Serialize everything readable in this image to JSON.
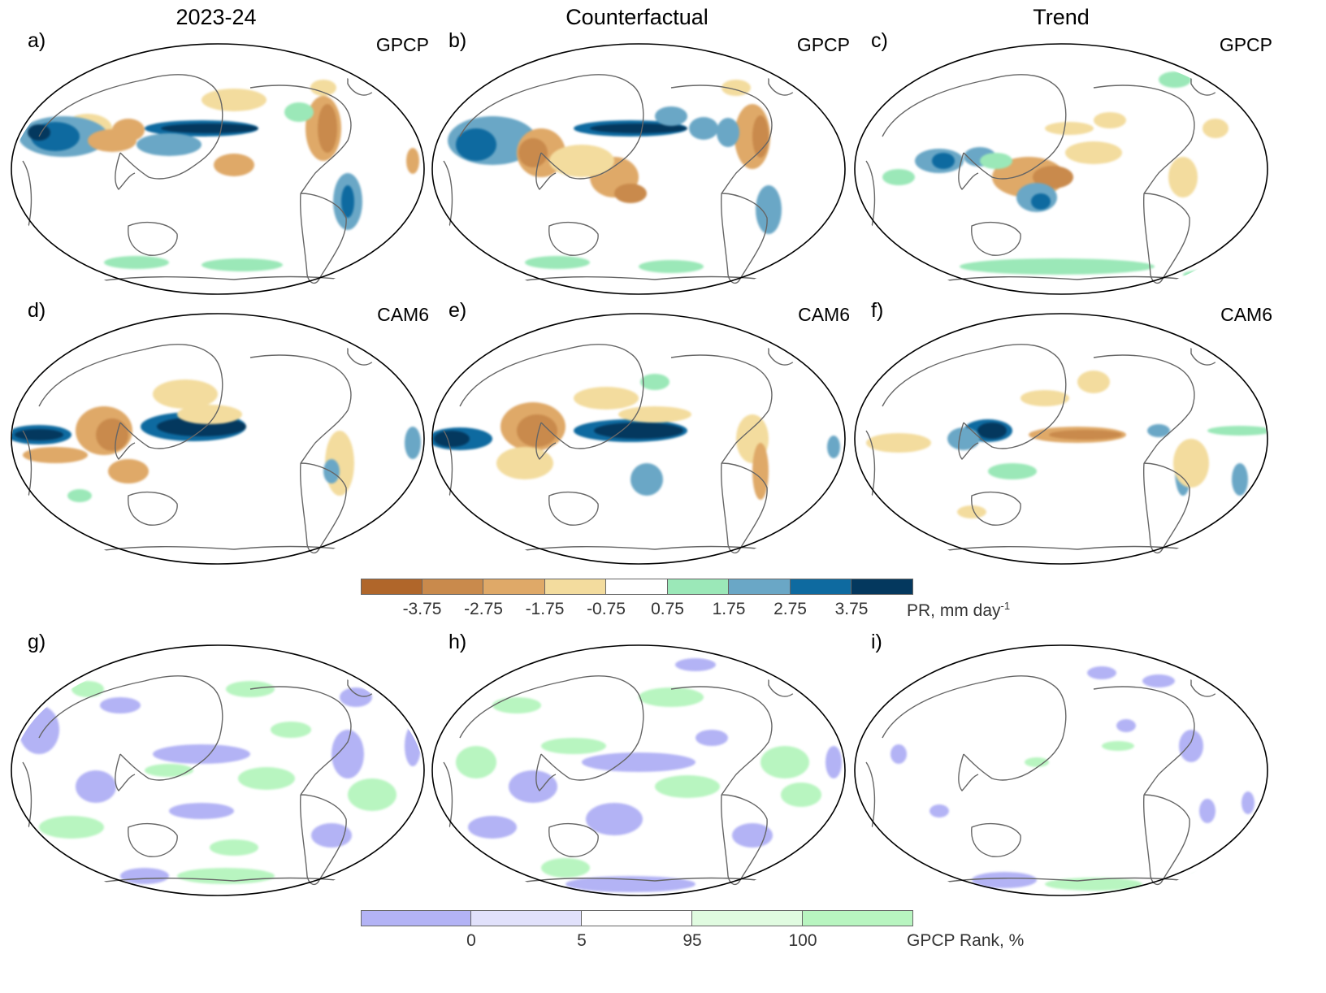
{
  "columns": [
    "2023-24",
    "Counterfactual",
    "Trend"
  ],
  "panels": [
    {
      "label": "a)",
      "dataset": "GPCP",
      "kind": "pr"
    },
    {
      "label": "b)",
      "dataset": "GPCP",
      "kind": "pr"
    },
    {
      "label": "c)",
      "dataset": "GPCP",
      "kind": "pr"
    },
    {
      "label": "d)",
      "dataset": "CAM6",
      "kind": "pr"
    },
    {
      "label": "e)",
      "dataset": "CAM6",
      "kind": "pr"
    },
    {
      "label": "f)",
      "dataset": "CAM6",
      "kind": "pr"
    },
    {
      "label": "g)",
      "dataset": "",
      "kind": "rank"
    },
    {
      "label": "h)",
      "dataset": "",
      "kind": "rank"
    },
    {
      "label": "i)",
      "dataset": "",
      "kind": "rank"
    }
  ],
  "pr_colorbar": {
    "colors": [
      "#b0662a",
      "#c98a4c",
      "#dfa968",
      "#f3dc9e",
      "#ffffff",
      "#9be8b8",
      "#6aa7c6",
      "#0e6aa0",
      "#04385e"
    ],
    "ticks": [
      "-3.75",
      "-2.75",
      "-1.75",
      "-0.75",
      "0.75",
      "1.75",
      "2.75",
      "3.75"
    ],
    "unit": "PR, mm day",
    "unit_sup": "-1"
  },
  "rank_colorbar": {
    "colors": [
      "#b3b3f5",
      "#e1e1fb",
      "#ffffff",
      "#e0fbe0",
      "#b8f5c0"
    ],
    "ticks": [
      "0",
      "5",
      "95",
      "100"
    ],
    "unit": "GPCP Rank, %"
  }
}
